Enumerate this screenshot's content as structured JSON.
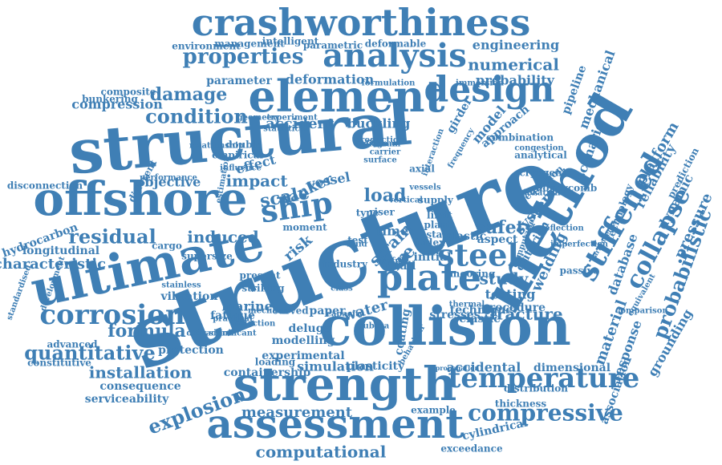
{
  "colors": {
    "word": "#3f7fb5",
    "background": "#ffffff"
  },
  "words": [
    "structure",
    "structural",
    "collision",
    "method",
    "crashworthiness",
    "strength",
    "element",
    "ultimate",
    "offshore",
    "assessment",
    "plate",
    "design",
    "analysis",
    "steel",
    "temperature",
    "corrosion",
    "stiffened",
    "compressive",
    "ship",
    "collapse",
    "properties",
    "condition",
    "probabilistic",
    "quantitative",
    "explosion",
    "residual",
    "computational",
    "safety",
    "induced",
    "formula",
    "damage",
    "installation",
    "scale",
    "impact",
    "load",
    "effect",
    "study",
    "measurement",
    "simulation",
    "numerical",
    "material",
    "platform",
    "mechanical",
    "pressure",
    "dynamic",
    "reliability",
    "fracture",
    "model",
    "approach",
    "testing",
    "welding",
    "engineering",
    "probability",
    "pipeline",
    "parameter",
    "deformation",
    "accident",
    "buckling",
    "compression",
    "characteristic",
    "longitudinal",
    "hydrocarbon",
    "disconnection",
    "vibration",
    "fatigue",
    "marine",
    "deluge",
    "paper",
    "water",
    "risk",
    "tanker",
    "vessel",
    "system",
    "criterion",
    "database",
    "response",
    "association",
    "grounding",
    "accidental",
    "dimensional",
    "thickness",
    "distribution",
    "cylindrical",
    "exceedance",
    "serviceability",
    "consequence",
    "containership",
    "protection",
    "advanced",
    "constitutive",
    "experimental",
    "loading",
    "modelling",
    "plasticity",
    "example",
    "technique",
    "stresses",
    "elastic",
    "coating",
    "procedure",
    "mooring",
    "plastic",
    "aspect",
    "initial",
    "limit",
    "state",
    "axial",
    "supply",
    "plant",
    "index",
    "strain",
    "fire",
    "full",
    "time",
    "riser",
    "type",
    "test",
    "curved",
    "subsea",
    "striking",
    "present",
    "moment",
    "cargo",
    "objective",
    "empirical",
    "double",
    "different",
    "composite",
    "bunkering",
    "environment",
    "management",
    "intelligent",
    "parametric",
    "deformable",
    "immersion",
    "formulation",
    "experiment",
    "statistical",
    "geometry",
    "production",
    "girder",
    "scenario",
    "prediction",
    "technology",
    "cryogenic",
    "equation",
    "location",
    "analytical",
    "interaction",
    "supersize",
    "stainless",
    "mechanic",
    "industry",
    "wave",
    "passive",
    "combination",
    "influence",
    "surface",
    "carrier",
    "frequency",
    "diagram",
    "congestion",
    "honeycomb",
    "deflection",
    "imperfection",
    "computation",
    "equivalent",
    "comparison",
    "standardised",
    "development",
    "diffraction",
    "practical",
    "significant",
    "behaviour",
    "propagation",
    "arrangement",
    "thermal",
    "capacity",
    "selection",
    "relationship",
    "estimation",
    "performance",
    "fluid",
    "useful",
    "class",
    "vertical",
    "vessels"
  ]
}
